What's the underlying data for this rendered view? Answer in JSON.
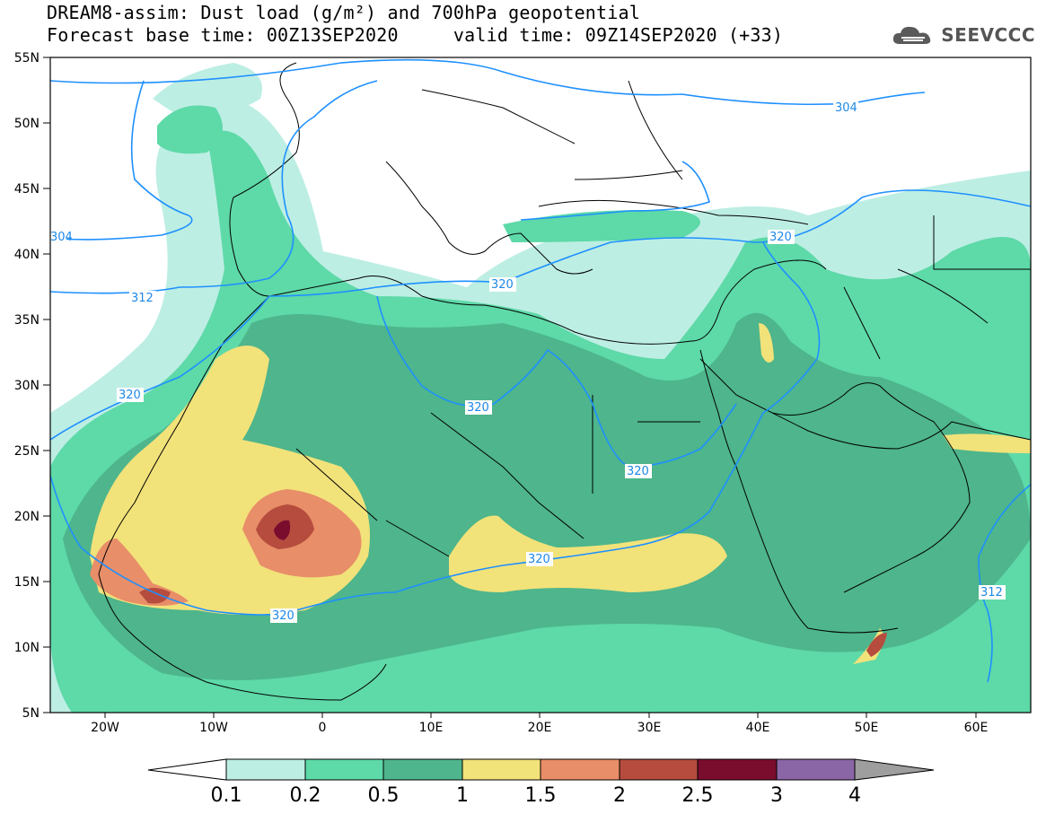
{
  "header": {
    "title_line1": "DREAM8-assim: Dust load (g/m²) and 700hPa geopotential",
    "title_line2": "Forecast base time: 00Z13SEP2020     valid time: 09Z14SEP2020 (+33)"
  },
  "logo": {
    "text": "SEEVCCC",
    "icon": "cloud-icon",
    "color": "#5a5a5a"
  },
  "map": {
    "lat_labels": [
      "55N",
      "50N",
      "45N",
      "40N",
      "35N",
      "30N",
      "25N",
      "20N",
      "15N",
      "10N",
      "5N"
    ],
    "lon_labels": [
      "20W",
      "10W",
      "0",
      "10E",
      "20E",
      "30E",
      "40E",
      "50E",
      "60E"
    ],
    "contour_labels": [
      "304",
      "304",
      "312",
      "312",
      "320",
      "320",
      "320",
      "320",
      "320",
      "320",
      "320"
    ],
    "contour_color": "#1e90ff"
  },
  "colorbar": {
    "levels": [
      "0.1",
      "0.2",
      "0.5",
      "1",
      "1.5",
      "2",
      "2.5",
      "3",
      "4"
    ],
    "colors": [
      "#bdeee4",
      "#5ed9a8",
      "#4eb58c",
      "#f2e27a",
      "#e88e68",
      "#b54c3e",
      "#7a0c2e",
      "#8b66a6",
      "#9e9e9e"
    ]
  }
}
